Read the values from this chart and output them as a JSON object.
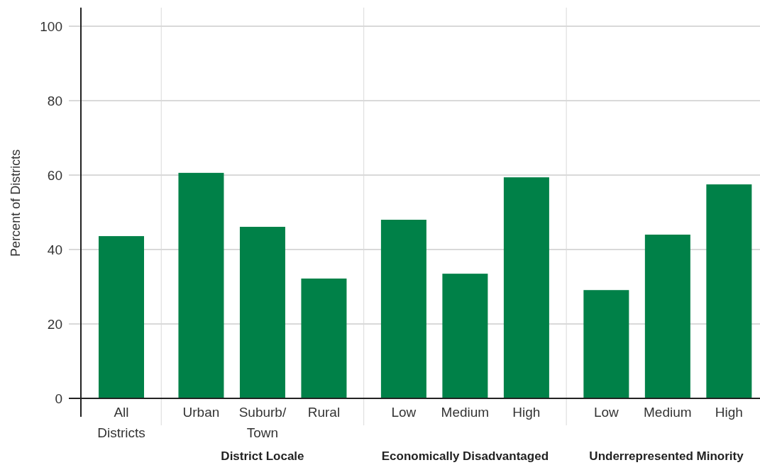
{
  "chart_data": {
    "type": "bar",
    "ylabel": "Percent of Districts",
    "categories": [
      "All Districts",
      "Urban",
      "Suburb/Town",
      "Rural",
      "Low",
      "Medium",
      "High",
      "Low",
      "Medium",
      "High"
    ],
    "values": [
      43.6,
      60.6,
      46.1,
      32.2,
      48.0,
      33.5,
      59.4,
      29.1,
      44.0,
      57.5
    ],
    "color": "#008148",
    "ylim": [
      0,
      105
    ],
    "yticks": [
      0,
      20,
      40,
      60,
      80,
      100
    ],
    "grid": "y",
    "annotations": [
      "District Locale",
      "Economically Disadvantaged",
      "Underrepresented Minority"
    ]
  }
}
